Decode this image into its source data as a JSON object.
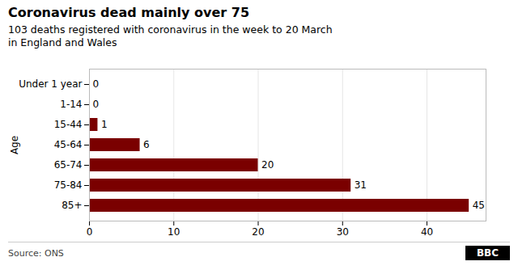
{
  "chart_data": {
    "type": "bar",
    "orientation": "horizontal",
    "title": "Coronavirus dead mainly over 75",
    "subtitle": "103 deaths registered with coronavirus in the week to 20 March\nin England and Wales",
    "ylabel": "Age",
    "source": "Source: ONS",
    "annotations": [
      "BBC"
    ],
    "categories": [
      "Under 1 year",
      "1-14",
      "15-44",
      "45-64",
      "65-74",
      "75-84",
      "85+"
    ],
    "values": [
      0,
      0,
      1,
      6,
      20,
      31,
      45
    ],
    "color": "#7a0000",
    "xlim": [
      0,
      47
    ],
    "xticks": [
      0,
      10,
      20,
      30,
      40
    ],
    "grid": true,
    "data_labels": true
  }
}
